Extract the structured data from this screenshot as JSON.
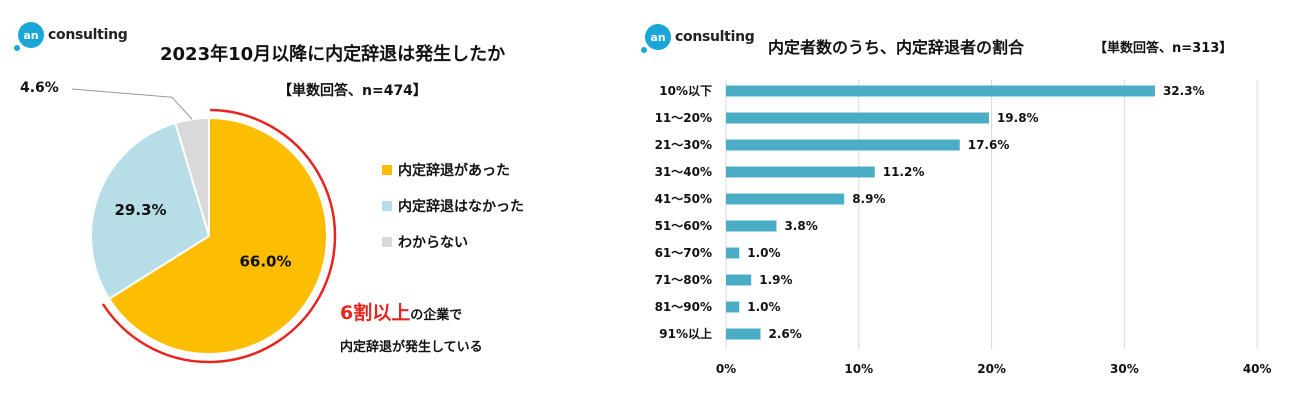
{
  "left": {
    "logo": {
      "mark": "an",
      "word": "consulting"
    },
    "title": "2023年10月以降に内定辞退は発生したか",
    "subtitle": "【単数回答、n=474】",
    "note_highlight": "6割以上",
    "note_rest": "の企業で",
    "note_line2": "内定辞退が発生している"
  },
  "right": {
    "logo": {
      "mark": "an",
      "word": "consulting"
    },
    "title": "内定者数のうち、内定辞退者の割合",
    "subtitle": "【単数回答、n=313】"
  },
  "colors": {
    "yes": "#fdbd00",
    "no": "#b7dde6",
    "unknown": "#d9d9d9",
    "bar": "#4bacc6",
    "highlight": "#e8241e"
  },
  "chart_data": [
    {
      "type": "pie",
      "title": "2023年10月以降に内定辞退は発生したか",
      "slices": [
        {
          "name": "内定辞退があった",
          "value": 66.0,
          "label": "66.0%"
        },
        {
          "name": "内定辞退はなかった",
          "value": 29.3,
          "label": "29.3%"
        },
        {
          "name": "わからない",
          "value": 4.6,
          "label": "4.6%"
        }
      ]
    },
    {
      "type": "bar",
      "orientation": "horizontal",
      "title": "内定者数のうち、内定辞退者の割合",
      "categories": [
        "10%以下",
        "11～20%",
        "21～30%",
        "31～40%",
        "41～50%",
        "51～60%",
        "61～70%",
        "71～80%",
        "81～90%",
        "91%以上"
      ],
      "values": [
        32.3,
        19.8,
        17.6,
        11.2,
        8.9,
        3.8,
        1.0,
        1.9,
        1.0,
        2.6
      ],
      "value_labels": [
        "32.3%",
        "19.8%",
        "17.6%",
        "11.2%",
        "8.9%",
        "3.8%",
        "1.0%",
        "1.9%",
        "1.0%",
        "2.6%"
      ],
      "xlim": [
        0,
        40
      ],
      "ticks": [
        "0%",
        "10%",
        "20%",
        "30%",
        "40%"
      ],
      "grid": true
    }
  ]
}
